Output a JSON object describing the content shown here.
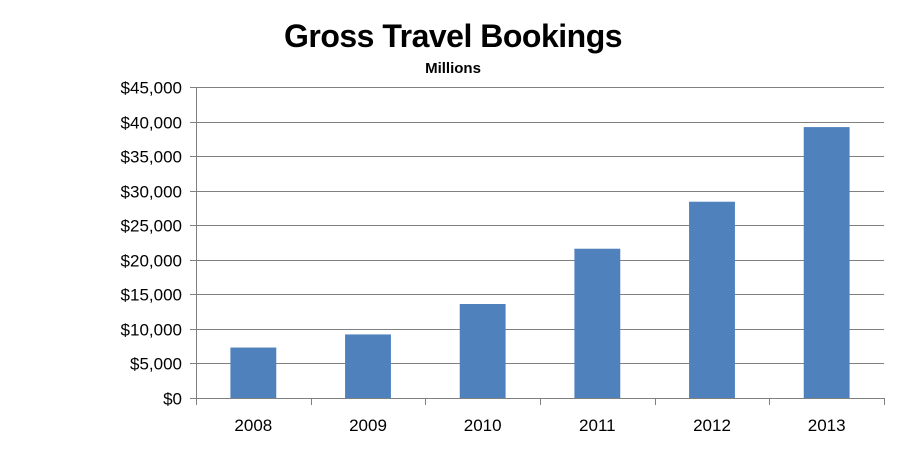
{
  "chart_data": {
    "type": "bar",
    "title": "Gross Travel Bookings",
    "subtitle": "Millions",
    "categories": [
      "2008",
      "2009",
      "2010",
      "2011",
      "2012",
      "2013"
    ],
    "values": [
      7300,
      9200,
      13600,
      21600,
      28400,
      39200
    ],
    "ylim": [
      0,
      45000
    ],
    "yticks": [
      0,
      5000,
      10000,
      15000,
      20000,
      25000,
      30000,
      35000,
      40000,
      45000
    ],
    "ytick_labels": [
      "$0",
      "$5,000",
      "$10,000",
      "$15,000",
      "$20,000",
      "$25,000",
      "$30,000",
      "$35,000",
      "$40,000",
      "$45,000"
    ],
    "grid": true,
    "legend": "none",
    "bar_color": "#4F81BD",
    "gridline_color": "#808080"
  }
}
